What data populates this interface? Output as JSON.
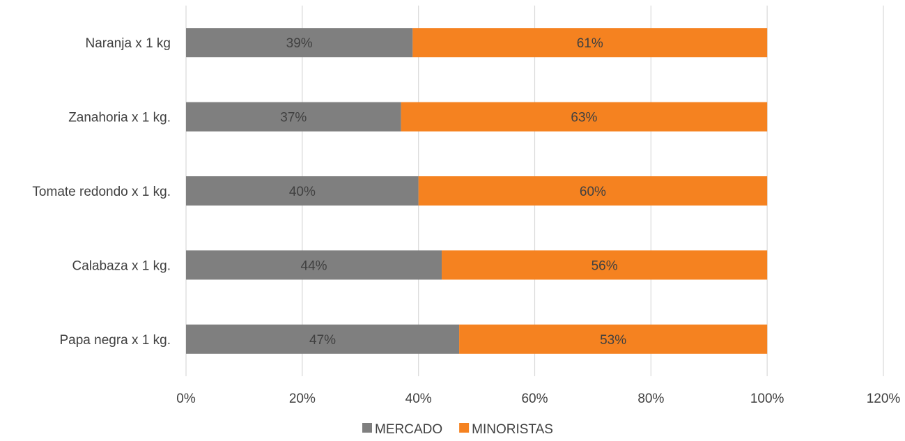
{
  "chart_data": {
    "type": "bar",
    "orientation": "horizontal",
    "stacked": true,
    "categories": [
      "Papa negra x 1 kg.",
      "Calabaza x 1 kg.",
      "Tomate redondo x 1 kg.",
      "Zanahoria x 1 kg.",
      "Naranja x 1 kg"
    ],
    "series": [
      {
        "name": "MERCADO",
        "color": "#7f7f7f",
        "values": [
          47,
          44,
          40,
          37,
          39
        ],
        "labels": [
          "47%",
          "44%",
          "40%",
          "37%",
          "39%"
        ]
      },
      {
        "name": "MINORISTAS",
        "color": "#f58220",
        "values": [
          53,
          56,
          60,
          63,
          61
        ],
        "labels": [
          "53%",
          "56%",
          "60%",
          "63%",
          "61%"
        ]
      }
    ],
    "xlim": [
      0,
      120
    ],
    "xticks": [
      0,
      20,
      40,
      60,
      80,
      100,
      120
    ],
    "xtick_labels": [
      "0%",
      "20%",
      "40%",
      "60%",
      "80%",
      "100%",
      "120%"
    ],
    "grid": "vertical",
    "gridline_color": "#d9d9d9",
    "legend_position": "bottom",
    "title": "",
    "xlabel": "",
    "ylabel": ""
  }
}
